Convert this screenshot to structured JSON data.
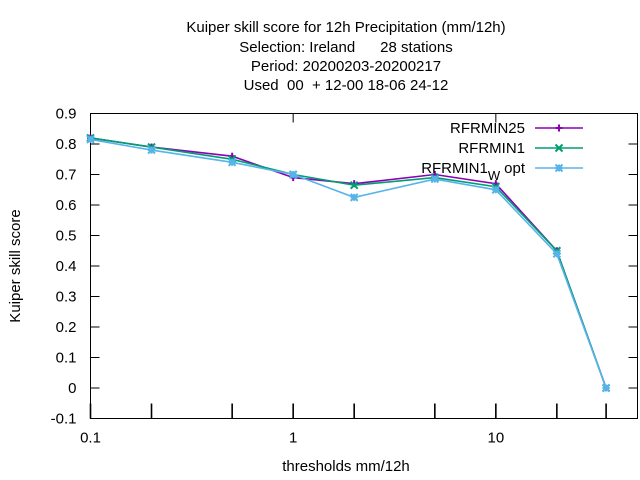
{
  "chart_data": {
    "type": "line",
    "title_lines": [
      "Kuiper skill score  for 12h Precipitation (mm/12h)",
      "Selection: Ireland      28 stations",
      "Period: 20200203-20200217",
      "Used  00  + 12-00 18-06 24-12"
    ],
    "xlabel": "thresholds mm/12h",
    "ylabel": "Kuiper skill score",
    "xscale": "log",
    "xlim": [
      0.1,
      50
    ],
    "ylim": [
      -0.1,
      0.9
    ],
    "xticks": [
      {
        "value": 0.1,
        "label": "0.1"
      },
      {
        "value": 1,
        "label": "1"
      },
      {
        "value": 10,
        "label": "10"
      }
    ],
    "xticks_minor": [
      0.2,
      0.5,
      2,
      5,
      20,
      35
    ],
    "yticks": [
      {
        "value": -0.1,
        "label": "-0.1"
      },
      {
        "value": 0,
        "label": "0"
      },
      {
        "value": 0.1,
        "label": "0.1"
      },
      {
        "value": 0.2,
        "label": "0.2"
      },
      {
        "value": 0.3,
        "label": "0.3"
      },
      {
        "value": 0.4,
        "label": "0.4"
      },
      {
        "value": 0.5,
        "label": "0.5"
      },
      {
        "value": 0.6,
        "label": "0.6"
      },
      {
        "value": 0.7,
        "label": "0.7"
      },
      {
        "value": 0.8,
        "label": "0.8"
      },
      {
        "value": 0.9,
        "label": "0.9"
      }
    ],
    "legend_position": "top-right",
    "grid": false,
    "series": [
      {
        "name": "RFRMIN25",
        "color": "#8b00b8",
        "marker": "plus",
        "x": [
          0.1,
          0.2,
          0.5,
          1,
          2,
          5,
          10,
          20,
          35
        ],
        "y": [
          0.82,
          0.79,
          0.76,
          0.69,
          0.67,
          0.7,
          0.67,
          0.45,
          0.0
        ]
      },
      {
        "name": "RFRMIN1",
        "color": "#009e73",
        "marker": "x",
        "x": [
          0.1,
          0.2,
          0.5,
          1,
          2,
          5,
          10,
          20,
          35
        ],
        "y": [
          0.82,
          0.79,
          0.75,
          0.7,
          0.665,
          0.69,
          0.66,
          0.45,
          0.0
        ]
      },
      {
        "name": "RFRMIN1",
        "name_sub": "W",
        "name_suffix": "opt",
        "color": "#56b4e9",
        "marker": "asterisk",
        "x": [
          0.1,
          0.2,
          0.5,
          1,
          2,
          5,
          10,
          20,
          35
        ],
        "y": [
          0.815,
          0.78,
          0.74,
          0.7,
          0.625,
          0.685,
          0.65,
          0.44,
          0.0
        ]
      }
    ]
  }
}
